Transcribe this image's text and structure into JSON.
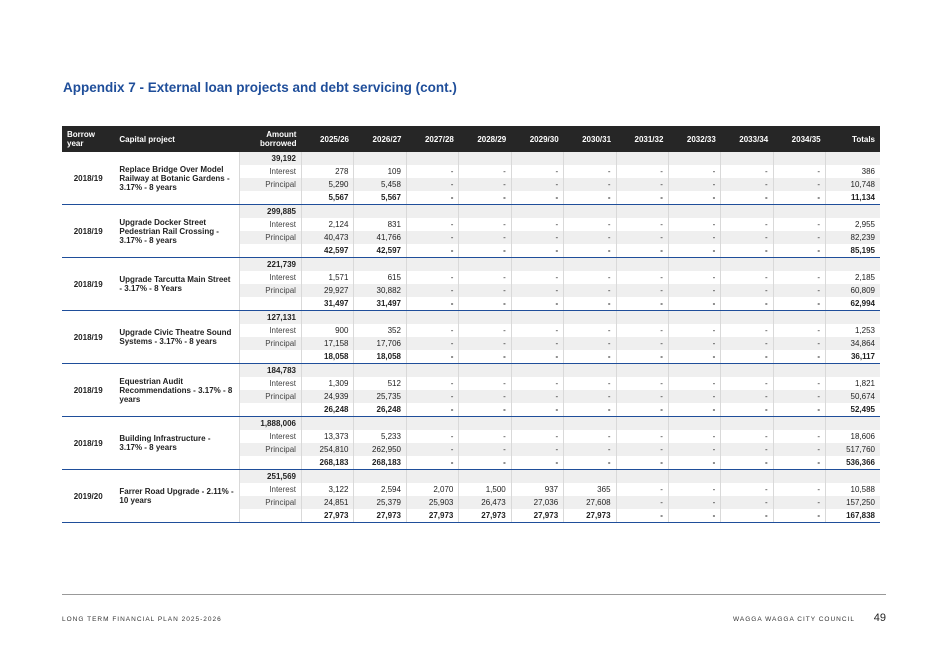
{
  "title": "Appendix 7 - External loan projects and debt servicing (cont.)",
  "table": {
    "headers": [
      "Borrow year",
      "Capital project",
      "Amount borrowed",
      "2025/26",
      "2026/27",
      "2027/28",
      "2028/29",
      "2029/30",
      "2030/31",
      "2031/32",
      "2032/33",
      "2033/34",
      "2034/35",
      "Totals"
    ],
    "projects": [
      {
        "year": "2018/19",
        "name": "Replace Bridge Over Model Railway at Botanic Gardens - 3.17% - 8 years",
        "amount": "39,192",
        "interest": [
          "278",
          "109",
          "-",
          "-",
          "-",
          "-",
          "-",
          "-",
          "-",
          "-",
          "386"
        ],
        "principal": [
          "5,290",
          "5,458",
          "-",
          "-",
          "-",
          "-",
          "-",
          "-",
          "-",
          "-",
          "10,748"
        ],
        "total": [
          "5,567",
          "5,567",
          "-",
          "-",
          "-",
          "-",
          "-",
          "-",
          "-",
          "-",
          "11,134"
        ]
      },
      {
        "year": "2018/19",
        "name": "Upgrade Docker Street Pedestrian Rail Crossing - 3.17% - 8 years",
        "amount": "299,885",
        "interest": [
          "2,124",
          "831",
          "-",
          "-",
          "-",
          "-",
          "-",
          "-",
          "-",
          "-",
          "2,955"
        ],
        "principal": [
          "40,473",
          "41,766",
          "-",
          "-",
          "-",
          "-",
          "-",
          "-",
          "-",
          "-",
          "82,239"
        ],
        "total": [
          "42,597",
          "42,597",
          "-",
          "-",
          "-",
          "-",
          "-",
          "-",
          "-",
          "-",
          "85,195"
        ]
      },
      {
        "year": "2018/19",
        "name": "Upgrade Tarcutta Main Street - 3.17% - 8 Years",
        "amount": "221,739",
        "interest": [
          "1,571",
          "615",
          "-",
          "-",
          "-",
          "-",
          "-",
          "-",
          "-",
          "-",
          "2,185"
        ],
        "principal": [
          "29,927",
          "30,882",
          "-",
          "-",
          "-",
          "-",
          "-",
          "-",
          "-",
          "-",
          "60,809"
        ],
        "total": [
          "31,497",
          "31,497",
          "-",
          "-",
          "-",
          "-",
          "-",
          "-",
          "-",
          "-",
          "62,994"
        ]
      },
      {
        "year": "2018/19",
        "name": "Upgrade Civic Theatre Sound Systems - 3.17% - 8 years",
        "amount": "127,131",
        "interest": [
          "900",
          "352",
          "-",
          "-",
          "-",
          "-",
          "-",
          "-",
          "-",
          "-",
          "1,253"
        ],
        "principal": [
          "17,158",
          "17,706",
          "-",
          "-",
          "-",
          "-",
          "-",
          "-",
          "-",
          "-",
          "34,864"
        ],
        "total": [
          "18,058",
          "18,058",
          "-",
          "-",
          "-",
          "-",
          "-",
          "-",
          "-",
          "-",
          "36,117"
        ]
      },
      {
        "year": "2018/19",
        "name": "Equestrian Audit Recommendations - 3.17% - 8 years",
        "amount": "184,783",
        "interest": [
          "1,309",
          "512",
          "-",
          "-",
          "-",
          "-",
          "-",
          "-",
          "-",
          "-",
          "1,821"
        ],
        "principal": [
          "24,939",
          "25,735",
          "-",
          "-",
          "-",
          "-",
          "-",
          "-",
          "-",
          "-",
          "50,674"
        ],
        "total": [
          "26,248",
          "26,248",
          "-",
          "-",
          "-",
          "-",
          "-",
          "-",
          "-",
          "-",
          "52,495"
        ]
      },
      {
        "year": "2018/19",
        "name": "Building Infrastructure - 3.17% - 8 years",
        "amount": "1,888,006",
        "interest": [
          "13,373",
          "5,233",
          "-",
          "-",
          "-",
          "-",
          "-",
          "-",
          "-",
          "-",
          "18,606"
        ],
        "principal": [
          "254,810",
          "262,950",
          "-",
          "-",
          "-",
          "-",
          "-",
          "-",
          "-",
          "-",
          "517,760"
        ],
        "total": [
          "268,183",
          "268,183",
          "-",
          "-",
          "-",
          "-",
          "-",
          "-",
          "-",
          "-",
          "536,366"
        ]
      },
      {
        "year": "2019/20",
        "name": "Farrer Road Upgrade - 2.11% - 10 years",
        "amount": "251,569",
        "interest": [
          "3,122",
          "2,594",
          "2,070",
          "1,500",
          "937",
          "365",
          "-",
          "-",
          "-",
          "-",
          "10,588"
        ],
        "principal": [
          "24,851",
          "25,379",
          "25,903",
          "26,473",
          "27,036",
          "27,608",
          "-",
          "-",
          "-",
          "-",
          "157,250"
        ],
        "total": [
          "27,973",
          "27,973",
          "27,973",
          "27,973",
          "27,973",
          "27,973",
          "-",
          "-",
          "-",
          "-",
          "167,838"
        ]
      }
    ],
    "row_labels": {
      "interest": "Interest",
      "principal": "Principal"
    }
  },
  "footer": {
    "left": "LONG TERM FINANCIAL PLAN 2025-2026",
    "right": "WAGGA WAGGA CITY COUNCIL",
    "page": "49"
  }
}
